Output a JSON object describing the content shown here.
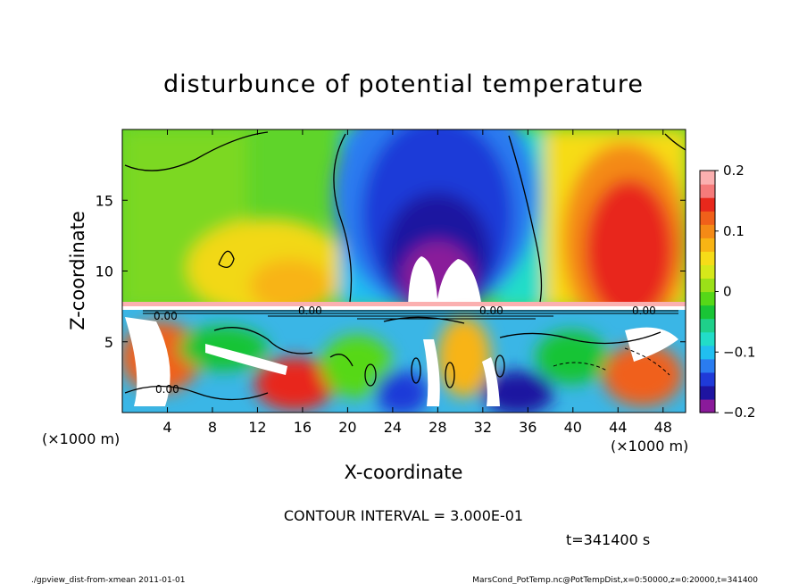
{
  "chart_data": {
    "type": "heatmap",
    "title": "disturbunce of potential temperature",
    "xlabel": "X-coordinate",
    "ylabel": "Z-coordinate",
    "x_unit_left": "(×1000 m)",
    "x_unit_right": "(×1000 m)",
    "xlim": [
      0,
      50
    ],
    "ylim": [
      0,
      20
    ],
    "x_ticks": [
      4,
      8,
      12,
      16,
      20,
      24,
      28,
      32,
      36,
      40,
      44,
      48
    ],
    "y_ticks": [
      5,
      10,
      15
    ],
    "colorbar": {
      "range": [
        -0.2,
        0.2
      ],
      "tick_values": [
        0.2,
        0.1,
        0,
        -0.1,
        -0.2
      ],
      "tick_labels": [
        "0.2",
        "0.1",
        "0",
        "−0.1",
        "−0.2"
      ],
      "colors": [
        "#8a1a9a",
        "#1e14a0",
        "#1f3ad8",
        "#2a7cf0",
        "#21bff0",
        "#22ddc8",
        "#1fd08a",
        "#19c436",
        "#56d818",
        "#9be018",
        "#d6e81a",
        "#f6dc18",
        "#f8b414",
        "#f48a16",
        "#f0601a",
        "#e8281c",
        "#f57a7a",
        "#fbb0b0"
      ]
    },
    "contour_interval_text": "CONTOUR INTERVAL = 3.000E-01",
    "contour_labels": [
      "0.00",
      "0.00",
      "0.00",
      "0.00",
      "0.00"
    ],
    "time_text": "t=341400 s"
  },
  "footer": {
    "left": "./gpview_dist-from-xmean  2011-01-01",
    "right": "MarsCond_PotTemp.nc@PotTempDist,x=0:50000,z=0:20000,t=341400"
  }
}
